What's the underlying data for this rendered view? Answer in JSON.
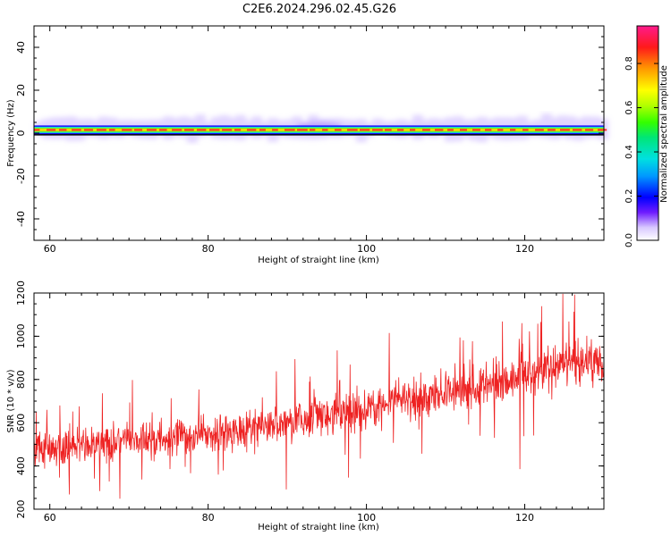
{
  "title": "C2E6.2024.296.02.45.G26",
  "chart_data": [
    {
      "type": "heatmap",
      "xlabel": "Height of straight line (km)",
      "ylabel": "Frequency (Hz)",
      "xlim": [
        58,
        130
      ],
      "ylim": [
        -50,
        50
      ],
      "x_ticks": [
        "60",
        "80",
        "100",
        "120"
      ],
      "y_ticks": [
        "40",
        "20",
        "0",
        "-20",
        "-40"
      ],
      "colorbar": {
        "label": "Normalized spectral amplitude",
        "range": [
          0,
          0.97
        ],
        "ticks": [
          "0.0",
          "0.2",
          "0.4",
          "0.6",
          "0.8"
        ]
      },
      "band": {
        "center_frequency_hz": 1.5,
        "peak_amplitude": 0.9,
        "weak_halo_extent_hz": [
          -3,
          6
        ]
      }
    },
    {
      "type": "line",
      "xlabel": "Height of straight line (km)",
      "ylabel": "SNR (10 * v/v)",
      "xlim": [
        58,
        130
      ],
      "ylim": [
        200,
        1200
      ],
      "x_ticks": [
        "60",
        "80",
        "100",
        "120"
      ],
      "y_ticks": [
        "1200",
        "1000",
        "800",
        "600",
        "400",
        "200"
      ],
      "series": [
        {
          "color": "#ee2222",
          "x": [
            58,
            62,
            66,
            70,
            74,
            78,
            82,
            86,
            90,
            94,
            98,
            102,
            106,
            110,
            114,
            118,
            122,
            126,
            130
          ],
          "y": [
            480,
            490,
            500,
            515,
            525,
            540,
            560,
            580,
            600,
            625,
            650,
            680,
            710,
            740,
            770,
            800,
            840,
            870,
            900
          ],
          "spread": [
            100,
            100,
            100,
            110,
            110,
            110,
            115,
            115,
            120,
            120,
            125,
            125,
            130,
            130,
            130,
            135,
            135,
            140,
            140
          ]
        }
      ]
    }
  ]
}
